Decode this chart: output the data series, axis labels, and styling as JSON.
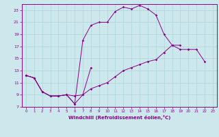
{
  "xlabel": "Windchill (Refroidissement éolien,°C)",
  "bg_color": "#cce8ec",
  "grid_color": "#aad4d8",
  "line_color": "#880088",
  "xlim": [
    -0.5,
    23.5
  ],
  "ylim": [
    7,
    24
  ],
  "xticks": [
    0,
    1,
    2,
    3,
    4,
    5,
    6,
    7,
    8,
    9,
    10,
    11,
    12,
    13,
    14,
    15,
    16,
    17,
    18,
    19,
    20,
    21,
    22,
    23
  ],
  "yticks": [
    7,
    9,
    11,
    13,
    15,
    17,
    19,
    21,
    23
  ],
  "line1_x": [
    0,
    1,
    2,
    3,
    4,
    5,
    6,
    7,
    8
  ],
  "line1_y": [
    12.2,
    11.8,
    9.5,
    8.8,
    8.8,
    9.0,
    7.5,
    9.0,
    13.5
  ],
  "line2_x": [
    0,
    1,
    2,
    3,
    4,
    5,
    6,
    7,
    8,
    9,
    10,
    11,
    12,
    13,
    14,
    15,
    16,
    17,
    18,
    19,
    20
  ],
  "line2_y": [
    12.2,
    11.8,
    9.5,
    8.8,
    8.8,
    9.0,
    7.5,
    18.0,
    20.5,
    21.0,
    21.0,
    22.8,
    23.5,
    23.2,
    23.8,
    23.2,
    22.2,
    19.0,
    17.2,
    16.5,
    16.5
  ],
  "line3_x": [
    0,
    1,
    2,
    3,
    4,
    5,
    6,
    7,
    8,
    9,
    10,
    11,
    12,
    13,
    14,
    15,
    16,
    17,
    18,
    19
  ],
  "line3_y": [
    12.2,
    11.8,
    9.5,
    8.8,
    8.8,
    9.0,
    8.8,
    9.0,
    10.0,
    10.5,
    11.0,
    12.0,
    13.0,
    13.5,
    14.0,
    14.5,
    14.8,
    16.0,
    17.2,
    17.2
  ],
  "line4_x": [
    20,
    21,
    22
  ],
  "line4_y": [
    16.5,
    16.5,
    14.5
  ]
}
